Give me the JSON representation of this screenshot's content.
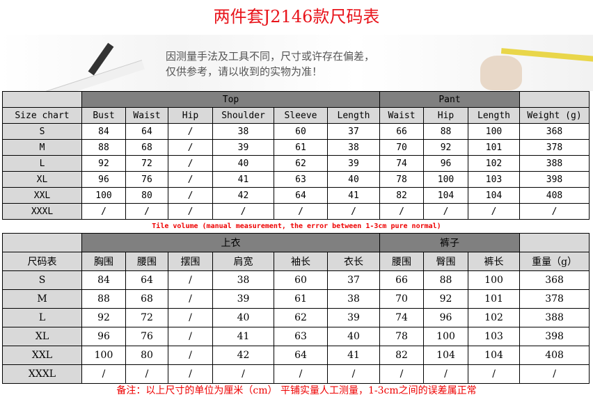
{
  "title": "两件套J2146款尺码表",
  "banner": {
    "line1": "因测量手法及工具不同，尺寸或许存在偏差，",
    "line2": "仅供参考，请以收到的实物为准！"
  },
  "table_en": {
    "group_top": "Top",
    "group_pant": "Pant",
    "headers": [
      "Size chart",
      "Bust",
      "Waist",
      "Hip",
      "Shoulder",
      "Sleeve",
      "Length",
      "Waist",
      "Hip",
      "Length",
      "Weight (g)"
    ],
    "rows": [
      [
        "S",
        "84",
        "64",
        "/",
        "38",
        "60",
        "37",
        "66",
        "88",
        "100",
        "368"
      ],
      [
        "M",
        "88",
        "68",
        "/",
        "39",
        "61",
        "38",
        "70",
        "92",
        "101",
        "378"
      ],
      [
        "L",
        "92",
        "72",
        "/",
        "40",
        "62",
        "39",
        "74",
        "96",
        "102",
        "388"
      ],
      [
        "XL",
        "96",
        "76",
        "/",
        "41",
        "63",
        "40",
        "78",
        "100",
        "103",
        "398"
      ],
      [
        "XXL",
        "100",
        "80",
        "/",
        "42",
        "64",
        "41",
        "82",
        "104",
        "104",
        "408"
      ],
      [
        "XXXL",
        "/",
        "/",
        "/",
        "/",
        "/",
        "/",
        "/",
        "/",
        "/",
        "/"
      ]
    ]
  },
  "note_en": "Tile volume (manual measurement, the error between 1-3cm pure normal)",
  "table_cn": {
    "group_top": "上衣",
    "group_pant": "裤子",
    "headers": [
      "尺码表",
      "胸围",
      "腰围",
      "摆围",
      "肩宽",
      "袖长",
      "衣长",
      "腰围",
      "臀围",
      "裤长",
      "重量（g）"
    ],
    "rows": [
      [
        "S",
        "84",
        "64",
        "/",
        "38",
        "60",
        "37",
        "66",
        "88",
        "100",
        "368"
      ],
      [
        "M",
        "88",
        "68",
        "/",
        "39",
        "61",
        "38",
        "70",
        "92",
        "101",
        "378"
      ],
      [
        "L",
        "92",
        "72",
        "/",
        "40",
        "62",
        "39",
        "74",
        "96",
        "102",
        "388"
      ],
      [
        "XL",
        "96",
        "76",
        "/",
        "41",
        "63",
        "40",
        "78",
        "100",
        "103",
        "398"
      ],
      [
        "XXL",
        "100",
        "80",
        "/",
        "42",
        "64",
        "41",
        "82",
        "104",
        "104",
        "408"
      ],
      [
        "XXXL",
        "/",
        "/",
        "/",
        "/",
        "/",
        "/",
        "/",
        "/",
        "/",
        "/"
      ]
    ]
  },
  "note_cn": "备注：以上尺寸的单位为厘米（cm）   平铺实量人工测量，1-3cm之间的误差属正常"
}
